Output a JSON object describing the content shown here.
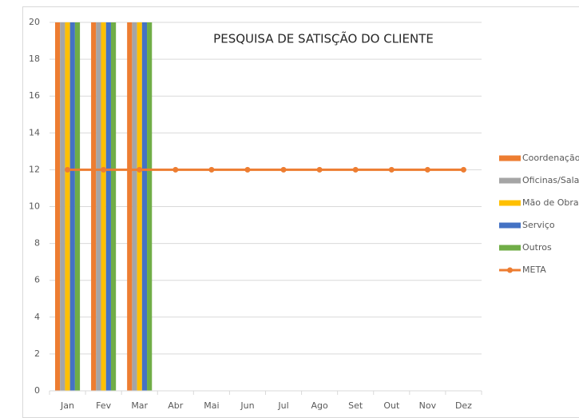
{
  "chart_data": {
    "type": "bar",
    "title": "PESQUISA DE SATISÇÃO DO CLIENTE",
    "categories": [
      "Jan",
      "Fev",
      "Mar",
      "Abr",
      "Mai",
      "Jun",
      "Jul",
      "Ago",
      "Set",
      "Out",
      "Nov",
      "Dez"
    ],
    "series": [
      {
        "name": "Coordenação",
        "color": "#ED7D31",
        "values": [
          20,
          20,
          20,
          null,
          null,
          null,
          null,
          null,
          null,
          null,
          null,
          null
        ]
      },
      {
        "name": "Oficinas/Sala",
        "color": "#A5A5A5",
        "values": [
          20,
          20,
          20,
          null,
          null,
          null,
          null,
          null,
          null,
          null,
          null,
          null
        ]
      },
      {
        "name": "Mão de Obra",
        "color": "#FFC000",
        "values": [
          20,
          20,
          20,
          null,
          null,
          null,
          null,
          null,
          null,
          null,
          null,
          null
        ]
      },
      {
        "name": "Serviço",
        "color": "#4472C4",
        "values": [
          20,
          20,
          20,
          null,
          null,
          null,
          null,
          null,
          null,
          null,
          null,
          null
        ]
      },
      {
        "name": "Outros",
        "color": "#70AD47",
        "values": [
          20,
          20,
          20,
          null,
          null,
          null,
          null,
          null,
          null,
          null,
          null,
          null
        ]
      },
      {
        "name": "META",
        "color": "#ED7D31",
        "type": "line",
        "values": [
          12,
          12,
          12,
          12,
          12,
          12,
          12,
          12,
          12,
          12,
          12,
          12
        ]
      }
    ],
    "ylim": [
      0,
      20
    ],
    "yticks": [
      0,
      2,
      4,
      6,
      8,
      10,
      12,
      14,
      16,
      18,
      20
    ],
    "grid": true,
    "legend": "right"
  }
}
